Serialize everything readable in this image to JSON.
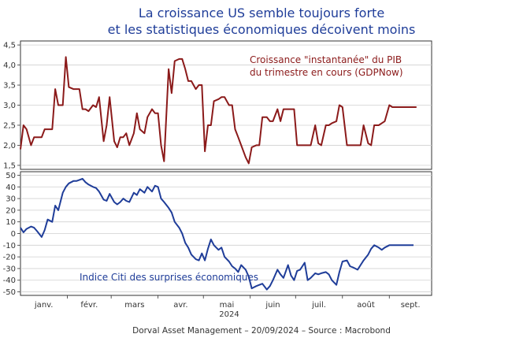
{
  "title_line1": "La croissance US semble toujours forte",
  "title_line2": "et les statistiques économiques décoivent moins",
  "footer": "Dorval Asset Management – 20/09/2024 –   Source : Macrobond",
  "chart_data": [
    {
      "type": "line",
      "title": "Croissance \"instantanée\" du PIB du trimestre en cours (GDPNow)",
      "annotation_lines": [
        "Croissance \"instantanée\" du PIB",
        "du trimestre en cours (GDPNow)"
      ],
      "color": "#8b1a1a",
      "ylim": [
        1.4,
        4.6
      ],
      "yticks": [
        "1,5",
        "2,0",
        "2,5",
        "3,0",
        "3,5",
        "4,0",
        "4,5"
      ],
      "ytick_values": [
        1.5,
        2.0,
        2.5,
        3.0,
        3.5,
        4.0,
        4.5
      ],
      "x_day_of_year": [
        1,
        3,
        5,
        8,
        10,
        12,
        15,
        17,
        19,
        22,
        24,
        26,
        29,
        31,
        33,
        36,
        38,
        40,
        42,
        44,
        46,
        49,
        51,
        53,
        56,
        58,
        60,
        63,
        65,
        67,
        69,
        71,
        73,
        76,
        78,
        80,
        83,
        85,
        88,
        90,
        92,
        94,
        96,
        99,
        101,
        103,
        106,
        108,
        110,
        112,
        114,
        117,
        119,
        121,
        123,
        125,
        127,
        129,
        132,
        134,
        136,
        139,
        141,
        143,
        145,
        147,
        150,
        152,
        154,
        157,
        159,
        161,
        164,
        166,
        168,
        171,
        173,
        175,
        178,
        180,
        182,
        184,
        186,
        189,
        191,
        193,
        196,
        198,
        200,
        203,
        205,
        207,
        210,
        212,
        214,
        217,
        219,
        221,
        224,
        226,
        228,
        231,
        233,
        235,
        238,
        240,
        242,
        245,
        247,
        249,
        252,
        254,
        256,
        259,
        261,
        263
      ],
      "y": [
        1.9,
        2.5,
        2.4,
        2.0,
        2.2,
        2.2,
        2.2,
        2.4,
        2.4,
        2.4,
        3.4,
        3.0,
        3.0,
        4.2,
        3.45,
        3.4,
        3.4,
        3.4,
        2.9,
        2.9,
        2.85,
        3.0,
        2.95,
        3.2,
        2.1,
        2.5,
        3.2,
        2.1,
        1.95,
        2.2,
        2.2,
        2.3,
        2.0,
        2.3,
        2.8,
        2.4,
        2.3,
        2.7,
        2.9,
        2.8,
        2.8,
        2.0,
        1.6,
        3.9,
        3.3,
        4.1,
        4.15,
        4.15,
        3.9,
        3.6,
        3.6,
        3.4,
        3.5,
        3.5,
        1.85,
        2.5,
        2.5,
        3.1,
        3.15,
        3.2,
        3.2,
        3.0,
        3.0,
        2.4,
        2.2,
        2.0,
        1.7,
        1.55,
        1.95,
        2.0,
        2.0,
        2.7,
        2.7,
        2.6,
        2.6,
        2.9,
        2.6,
        2.9,
        2.9,
        2.9,
        2.9,
        2.0,
        2.0,
        2.0,
        2.0,
        2.0,
        2.5,
        2.05,
        2.0,
        2.5,
        2.5,
        2.55,
        2.6,
        3.0,
        2.95,
        2.0,
        2.0,
        2.0,
        2.0,
        2.0,
        2.5,
        2.05,
        2.0,
        2.5,
        2.5,
        2.55,
        2.6,
        3.0,
        2.95,
        2.95,
        2.95,
        2.95,
        2.95,
        2.95,
        2.95,
        2.95
      ]
    },
    {
      "type": "line",
      "title": "Indice Citi des surprises économiques",
      "color": "#1f3d99",
      "ylim": [
        -53,
        53
      ],
      "yticks": [
        "50",
        "40",
        "30",
        "20",
        "10",
        "0",
        "-10",
        "-20",
        "-30",
        "-40",
        "-50"
      ],
      "ytick_values": [
        50,
        40,
        30,
        20,
        10,
        0,
        -10,
        -20,
        -30,
        -40,
        -50
      ],
      "x_day_of_year": [
        1,
        3,
        5,
        8,
        10,
        12,
        15,
        17,
        19,
        22,
        24,
        26,
        29,
        31,
        33,
        36,
        38,
        40,
        42,
        44,
        46,
        49,
        51,
        53,
        56,
        58,
        60,
        63,
        65,
        67,
        69,
        71,
        73,
        76,
        78,
        80,
        83,
        85,
        88,
        90,
        92,
        94,
        96,
        99,
        101,
        103,
        106,
        108,
        110,
        112,
        114,
        117,
        119,
        121,
        123,
        125,
        127,
        129,
        132,
        134,
        136,
        139,
        141,
        143,
        145,
        147,
        150,
        152,
        154,
        157,
        159,
        161,
        164,
        166,
        168,
        171,
        173,
        175,
        178,
        180,
        182,
        184,
        186,
        189,
        191,
        193,
        196,
        198,
        200,
        203,
        205,
        207,
        210,
        212,
        214,
        217,
        219,
        221,
        224,
        226,
        228,
        231,
        233,
        235,
        238,
        240,
        242,
        245,
        247,
        249,
        252,
        254,
        256,
        259,
        261
      ],
      "y": [
        5,
        1,
        4,
        6,
        5,
        2,
        -3,
        3,
        12,
        10,
        24,
        20,
        35,
        40,
        43,
        45,
        45,
        46,
        47,
        44,
        42,
        40,
        39,
        36,
        29,
        28,
        34,
        27,
        25,
        27,
        30,
        28,
        27,
        35,
        33,
        38,
        35,
        40,
        36,
        41,
        40,
        30,
        27,
        22,
        18,
        10,
        5,
        0,
        -8,
        -12,
        -18,
        -22,
        -23,
        -17,
        -23,
        -13,
        -5,
        -10,
        -14,
        -12,
        -20,
        -24,
        -28,
        -30,
        -33,
        -27,
        -31,
        -37,
        -47,
        -45,
        -44,
        -43,
        -48,
        -45,
        -40,
        -31,
        -35,
        -38,
        -27,
        -36,
        -40,
        -32,
        -31,
        -25,
        -40,
        -38,
        -34,
        -35,
        -34,
        -33,
        -35,
        -40,
        -44,
        -33,
        -24,
        -23,
        -28,
        -29,
        -31,
        -27,
        -23,
        -18,
        -13,
        -10,
        -12,
        -14,
        -12,
        -10,
        -10,
        -10,
        -10,
        -10,
        -10,
        -10,
        -10
      ]
    }
  ],
  "xaxis": {
    "year_label": "2024",
    "month_labels": [
      "janv.",
      "févr.",
      "mars",
      "avr.",
      "mai",
      "juin",
      "juil.",
      "août",
      "sept."
    ]
  }
}
